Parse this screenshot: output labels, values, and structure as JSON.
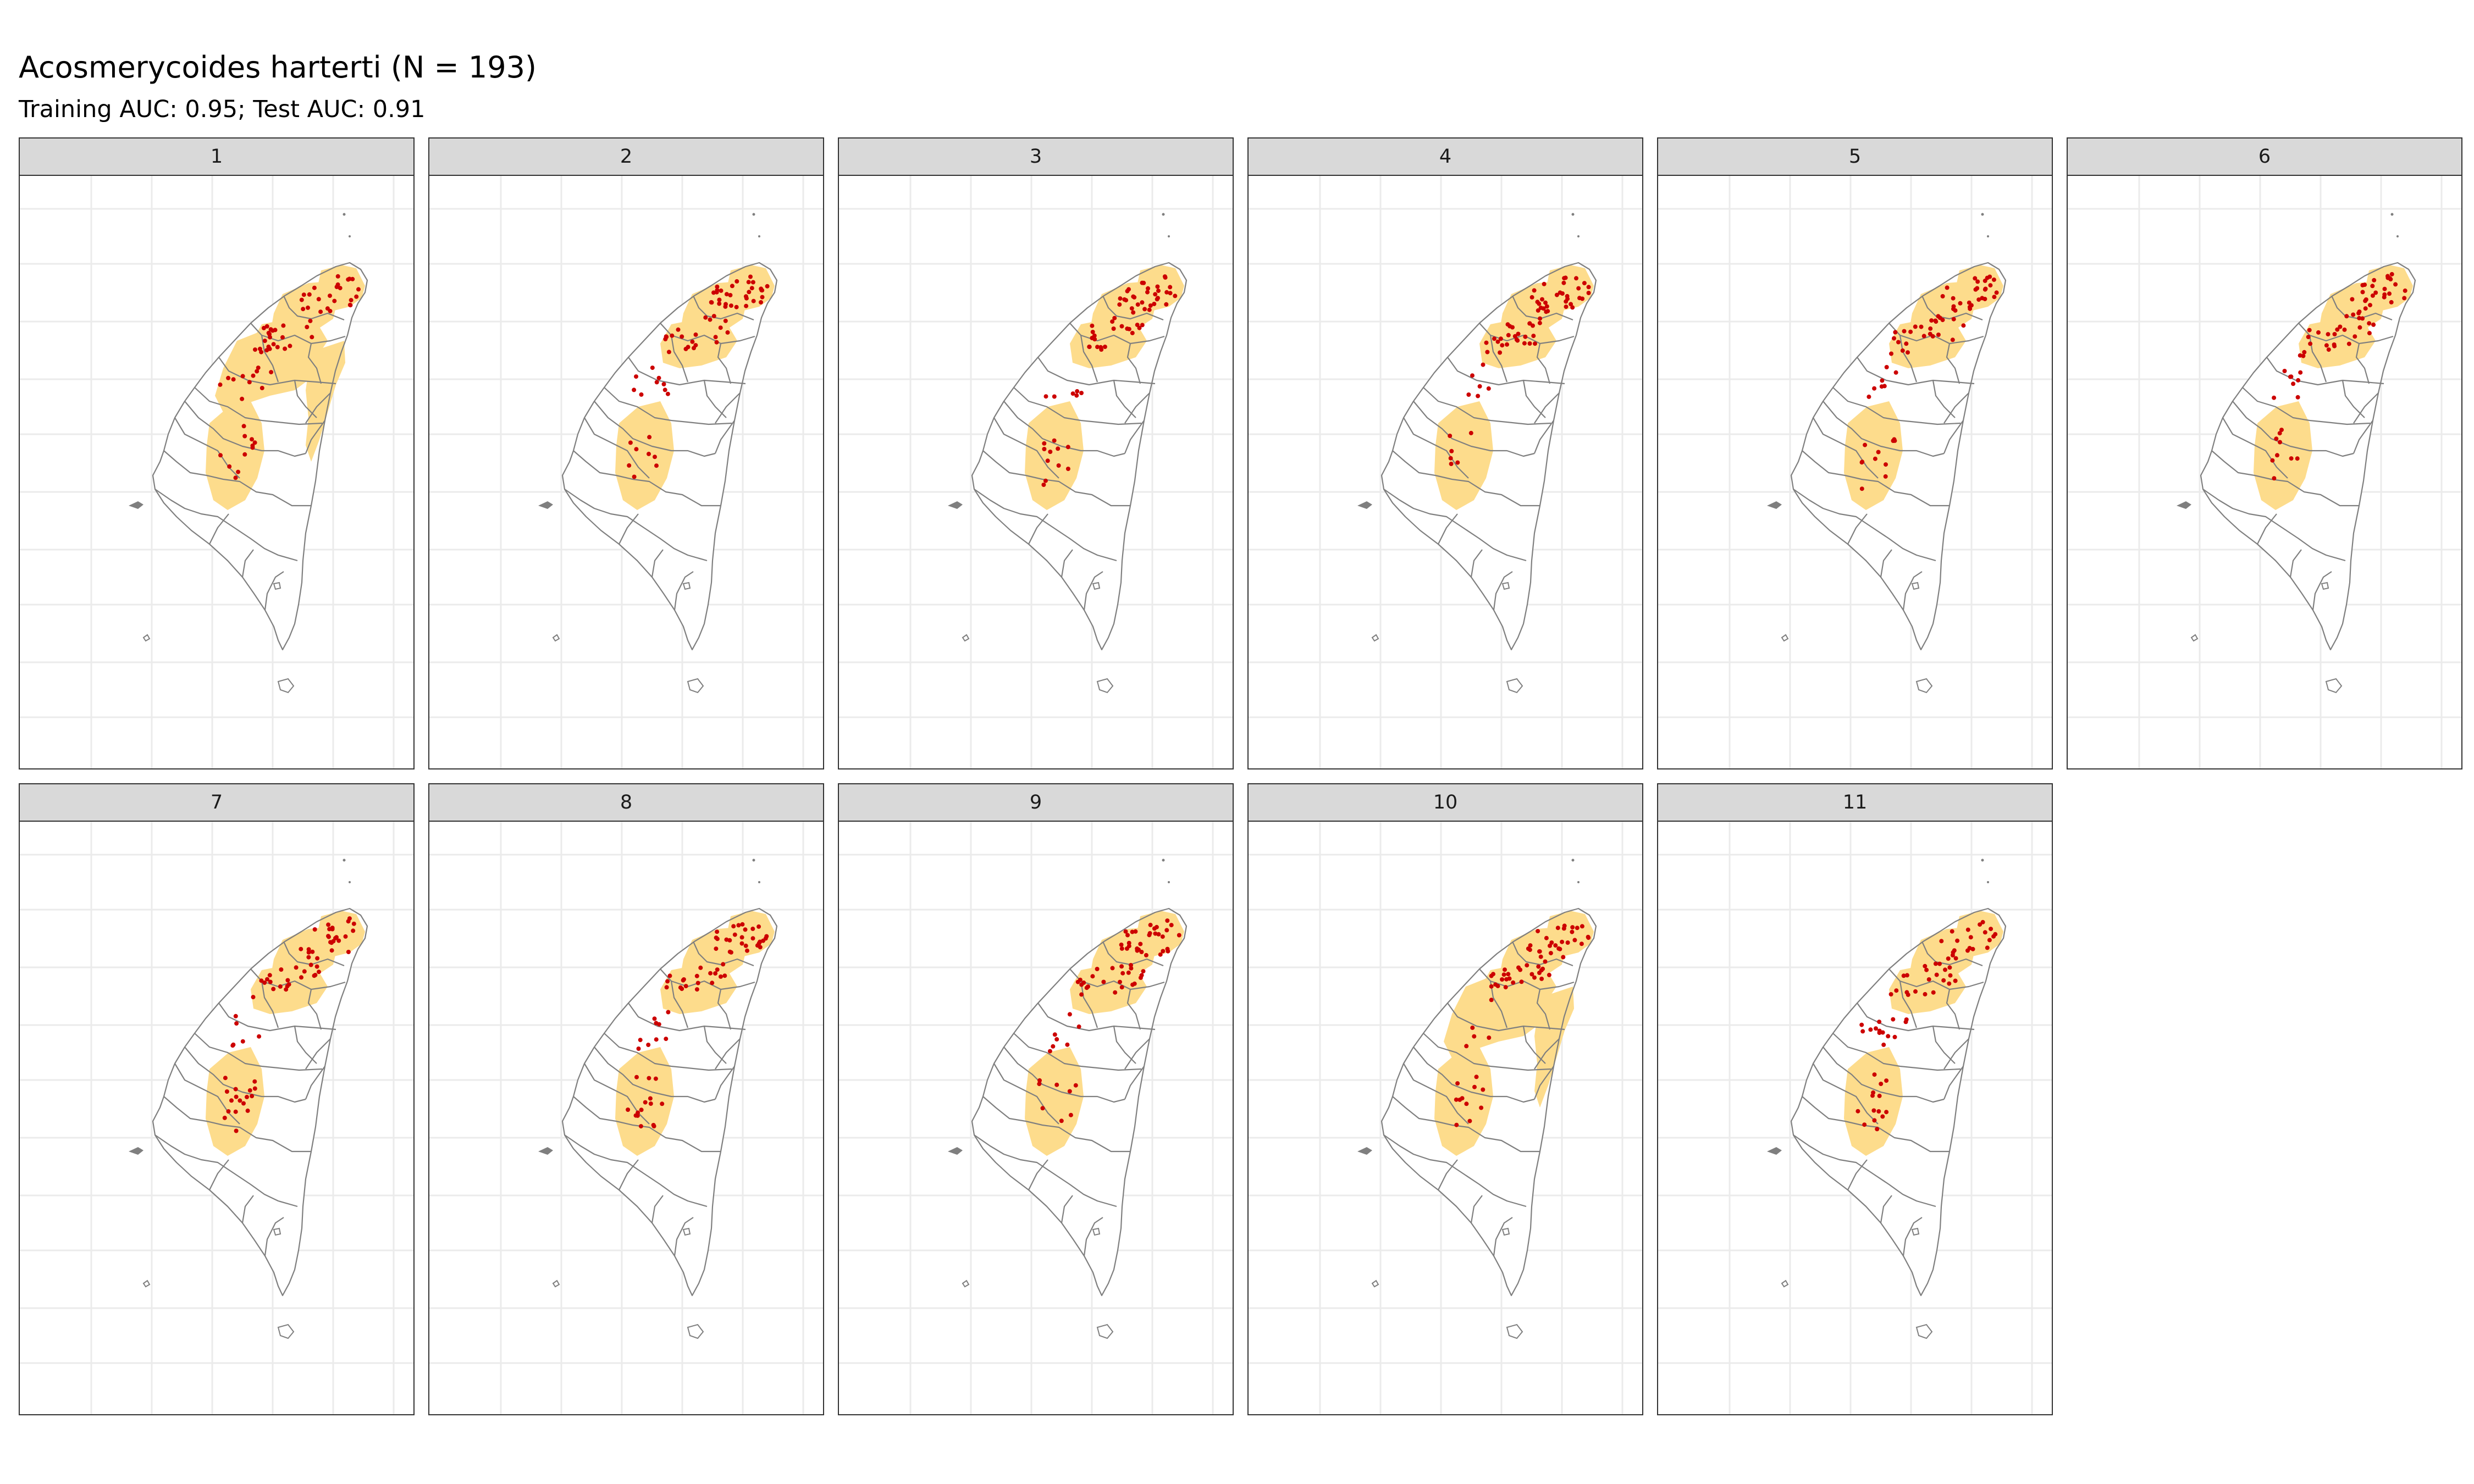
{
  "title": "Acosmerycoides harterti (N = 193)",
  "subtitle": "Training AUC: 0.95; Test AUC: 0.91",
  "facets": [
    {
      "label": "1",
      "suitable_lobes": [
        "northwest",
        "north",
        "northeast",
        "central",
        "central-east"
      ],
      "presence_points": 70
    },
    {
      "label": "2",
      "suitable_lobes": [
        "north",
        "northeast",
        "central"
      ],
      "presence_points": 70
    },
    {
      "label": "3",
      "suitable_lobes": [
        "north",
        "northeast",
        "central"
      ],
      "presence_points": 70
    },
    {
      "label": "4",
      "suitable_lobes": [
        "north",
        "northeast",
        "central"
      ],
      "presence_points": 70
    },
    {
      "label": "5",
      "suitable_lobes": [
        "north",
        "northeast",
        "central"
      ],
      "presence_points": 70
    },
    {
      "label": "6",
      "suitable_lobes": [
        "north",
        "northeast",
        "central"
      ],
      "presence_points": 70
    },
    {
      "label": "7",
      "suitable_lobes": [
        "north",
        "northeast",
        "central"
      ],
      "presence_points": 70
    },
    {
      "label": "8",
      "suitable_lobes": [
        "north",
        "northeast",
        "central"
      ],
      "presence_points": 70
    },
    {
      "label": "9",
      "suitable_lobes": [
        "north",
        "northeast",
        "central"
      ],
      "presence_points": 70
    },
    {
      "label": "10",
      "suitable_lobes": [
        "northwest",
        "north",
        "northeast",
        "central",
        "central-east"
      ],
      "presence_points": 70
    },
    {
      "label": "11",
      "suitable_lobes": [
        "north",
        "northeast",
        "central"
      ],
      "presence_points": 70
    }
  ],
  "colors": {
    "suitable_habitat": "#fddc8c",
    "presence_point": "#cc0000",
    "boundary": "#7f7f7f",
    "grid": "#ebebeb",
    "strip": "#d9d9d9"
  }
}
